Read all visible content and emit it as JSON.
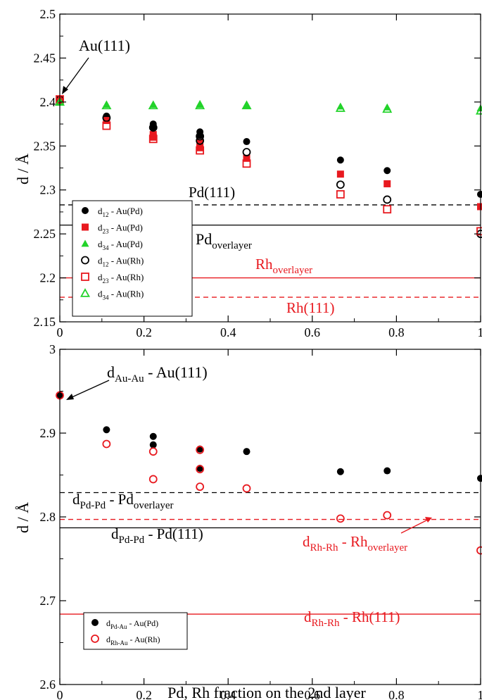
{
  "colors": {
    "black": "#000000",
    "red": "#e8191f",
    "green": "#22d32a"
  },
  "chart_data": [
    {
      "type": "scatter",
      "ylabel": "d / Å",
      "xlabel": "",
      "xlim": [
        0,
        1
      ],
      "ylim": [
        2.15,
        2.5
      ],
      "xticks": [
        0,
        0.2,
        0.4,
        0.6,
        0.8,
        1
      ],
      "xtick_labels": [
        "0",
        "0.2",
        "0.4",
        "0.6",
        "0.8",
        "1"
      ],
      "yticks": [
        2.15,
        2.2,
        2.25,
        2.3,
        2.35,
        2.4,
        2.45,
        2.5
      ],
      "ytick_labels": [
        "2.15",
        "2.2",
        "2.25",
        "2.3",
        "2.35",
        "2.4",
        "2.45",
        "2.5"
      ],
      "legend_position": "bottom-left",
      "series": [
        {
          "name": "d12 - Au(Pd)",
          "sub": "12",
          "label_rest": " - Au(Pd)",
          "marker": "circle",
          "filled": true,
          "color": "#000000",
          "x": [
            0,
            0.111,
            0.222,
            0.222,
            0.333,
            0.333,
            0.444,
            0.667,
            0.778,
            1
          ],
          "y": [
            2.403,
            2.384,
            2.375,
            2.371,
            2.366,
            2.362,
            2.355,
            2.334,
            2.322,
            2.295
          ]
        },
        {
          "name": "d23 - Au(Pd)",
          "sub": "23",
          "label_rest": " - Au(Pd)",
          "marker": "square",
          "filled": true,
          "color": "#e8191f",
          "x": [
            0,
            0.111,
            0.222,
            0.222,
            0.333,
            0.333,
            0.444,
            0.667,
            0.778,
            1
          ],
          "y": [
            2.403,
            2.379,
            2.363,
            2.36,
            2.354,
            2.348,
            2.336,
            2.318,
            2.307,
            2.281
          ]
        },
        {
          "name": "d34 - Au(Pd)",
          "sub": "34",
          "label_rest": " - Au(Pd)",
          "marker": "triangle",
          "filled": true,
          "color": "#22d32a",
          "x": [
            0,
            0.111,
            0.222,
            0.333,
            0.333,
            0.444,
            0.667,
            0.778,
            1
          ],
          "y": [
            2.4,
            2.397,
            2.397,
            2.397,
            2.398,
            2.396,
            2.395,
            2.394,
            2.393
          ]
        },
        {
          "name": "d12 - Au(Rh)",
          "sub": "12",
          "label_rest": " - Au(Rh)",
          "marker": "circle",
          "filled": false,
          "color": "#000000",
          "x": [
            0,
            0.111,
            0.222,
            0.333,
            0.333,
            0.444,
            0.667,
            0.778,
            1
          ],
          "y": [
            2.403,
            2.382,
            2.371,
            2.361,
            2.356,
            2.343,
            2.306,
            2.289,
            2.25
          ]
        },
        {
          "name": "d23 - Au(Rh)",
          "sub": "23",
          "label_rest": " - Au(Rh)",
          "marker": "square",
          "filled": false,
          "color": "#e8191f",
          "x": [
            0,
            0.111,
            0.222,
            0.333,
            0.444,
            0.667,
            0.778,
            1
          ],
          "y": [
            2.403,
            2.373,
            2.358,
            2.345,
            2.33,
            2.295,
            2.278,
            2.253
          ]
        },
        {
          "name": "d34 - Au(Rh)",
          "sub": "34",
          "label_rest": " - Au(Rh)",
          "marker": "triangle",
          "filled": false,
          "color": "#22d32a",
          "x": [
            0,
            0.111,
            0.222,
            0.333,
            0.444,
            0.667,
            0.778,
            1
          ],
          "y": [
            2.4,
            2.396,
            2.396,
            2.396,
            2.396,
            2.393,
            2.392,
            2.39
          ]
        }
      ],
      "reference_lines": [
        {
          "name": "Pd(111)",
          "y": 2.283,
          "color": "#000000",
          "dashed": true
        },
        {
          "name": "Pd overlayer",
          "y": 2.26,
          "color": "#000000",
          "dashed": false
        },
        {
          "name": "Rh overlayer",
          "y": 2.2,
          "color": "#e8191f",
          "dashed": false
        },
        {
          "name": "Rh(111)",
          "y": 2.178,
          "color": "#e8191f",
          "dashed": true
        }
      ],
      "annotations": [
        {
          "text": "Au(111)",
          "color": "#000000"
        },
        {
          "text": "Pd(111)",
          "color": "#000000"
        },
        {
          "main": "Pd",
          "sub": "overlayer",
          "color": "#000000"
        },
        {
          "main": "Rh",
          "sub": "overlayer",
          "color": "#e8191f"
        },
        {
          "text": "Rh(111)",
          "color": "#e8191f"
        }
      ]
    },
    {
      "type": "scatter",
      "ylabel": "d / Å",
      "xlabel": "Pd, Rh fraction on the 2nd layer",
      "xlim": [
        0,
        1
      ],
      "ylim": [
        2.6,
        3.0
      ],
      "xticks": [
        0,
        0.2,
        0.4,
        0.6,
        0.8,
        1
      ],
      "xtick_labels": [
        "0",
        "0.2",
        "0.4",
        "0.6",
        "0.8",
        "1"
      ],
      "yticks": [
        2.6,
        2.7,
        2.8,
        2.9,
        3.0
      ],
      "ytick_labels": [
        "2.6",
        "2.7",
        "2.8",
        "2.9",
        "3"
      ],
      "legend_position": "bottom-left",
      "series": [
        {
          "name": "dPd-Au - Au(Pd)",
          "sub": "Pd-Au",
          "label_rest": " - Au(Pd)",
          "marker": "circle",
          "filled": true,
          "color": "#000000",
          "x": [
            0,
            0.111,
            0.222,
            0.222,
            0.333,
            0.333,
            0.444,
            0.667,
            0.778,
            1
          ],
          "y": [
            2.945,
            2.904,
            2.896,
            2.886,
            2.881,
            2.858,
            2.878,
            2.854,
            2.855,
            2.846
          ]
        },
        {
          "name": "dRh-Au - Au(Rh)",
          "sub": "Rh-Au",
          "label_rest": " - Au(Rh)",
          "marker": "circle",
          "filled": false,
          "color": "#e8191f",
          "x": [
            0,
            0.111,
            0.222,
            0.222,
            0.333,
            0.333,
            0.333,
            0.444,
            0.667,
            0.778,
            1
          ],
          "y": [
            2.945,
            2.887,
            2.878,
            2.845,
            2.88,
            2.857,
            2.836,
            2.834,
            2.798,
            2.802,
            2.76
          ]
        }
      ],
      "reference_lines": [
        {
          "name": "dPd-Pd - Pd overlayer",
          "y": 2.829,
          "color": "#000000",
          "dashed": true
        },
        {
          "name": "dRh-Rh - Rh overlayer",
          "y": 2.797,
          "color": "#e8191f",
          "dashed": true
        },
        {
          "name": "dPd-Pd - Pd(111)",
          "y": 2.787,
          "color": "#000000",
          "dashed": false
        },
        {
          "name": "dRh-Rh - Rh(111)",
          "y": 2.684,
          "color": "#e8191f",
          "dashed": false
        }
      ],
      "annotations": [
        {
          "main": "d",
          "sub": "Au-Au",
          "rest": " - Au(111)",
          "color": "#000000"
        },
        {
          "main": "d",
          "sub": "Pd-Pd",
          "rest": " - Pd",
          "sub2": "overlayer",
          "color": "#000000"
        },
        {
          "main": "d",
          "sub": "Pd-Pd",
          "rest": " - Pd(111)",
          "color": "#000000"
        },
        {
          "main": "d",
          "sub": "Rh-Rh",
          "rest": " - Rh",
          "sub2": "overlayer",
          "color": "#e8191f"
        },
        {
          "main": "d",
          "sub": "Rh-Rh",
          "rest": " - Rh(111)",
          "color": "#e8191f"
        }
      ]
    }
  ]
}
